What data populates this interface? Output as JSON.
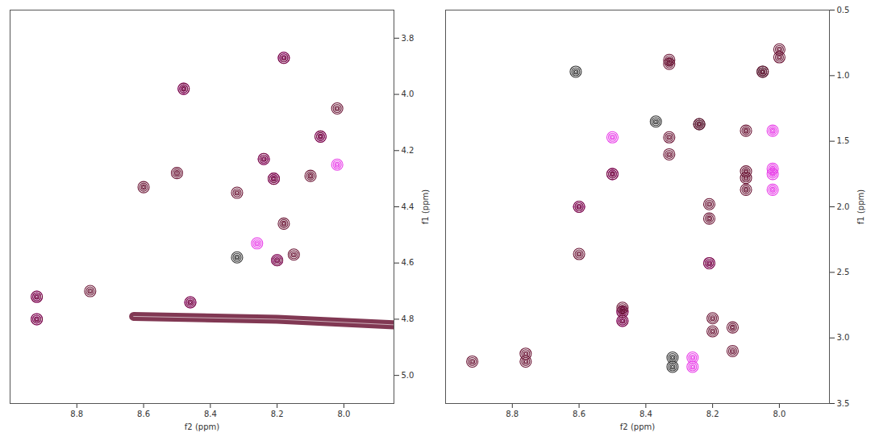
{
  "chart_data": [
    {
      "type": "scatter",
      "xlabel": "f2 (ppm)",
      "ylabel": "f1 (ppm)",
      "xlim": [
        9.0,
        7.85
      ],
      "ylim": [
        3.7,
        5.1
      ],
      "xticks": [
        8.8,
        8.6,
        8.4,
        8.2,
        {
          "value": 8,
          "label": "8.0"
        }
      ],
      "yticks": [
        3.8,
        {
          "value": 4,
          "label": "4.0"
        },
        4.2,
        4.4,
        4.6,
        4.8,
        {
          "value": 5,
          "label": "5.0"
        }
      ],
      "series": [
        {
          "color": "#e83ee8",
          "type": "scatter",
          "x": [
            8.92,
            8.92,
            8.48,
            8.46,
            8.26,
            8.24,
            8.21,
            8.2,
            8.18,
            8.07,
            8.02
          ],
          "values": [
            4.72,
            4.8,
            3.98,
            4.74,
            4.53,
            4.23,
            4.3,
            4.59,
            3.87,
            4.15,
            4.25
          ]
        },
        {
          "color": "#6b1535",
          "type": "line",
          "x": [
            8.63,
            8.2,
            7.85
          ],
          "values": [
            4.79,
            4.8,
            4.82
          ]
        },
        {
          "color": "#333333",
          "type": "scatter",
          "x": [
            8.32
          ],
          "values": [
            4.58
          ]
        },
        {
          "color": "#6b1535",
          "type": "scatter",
          "x": [
            8.92,
            8.92,
            8.76,
            8.6,
            8.5,
            8.48,
            8.46,
            8.32,
            8.24,
            8.21,
            8.2,
            8.18,
            8.18,
            8.15,
            8.1,
            8.07,
            8.02
          ],
          "values": [
            4.72,
            4.8,
            4.7,
            4.33,
            4.28,
            3.98,
            4.74,
            4.35,
            4.23,
            4.3,
            4.59,
            3.87,
            4.46,
            4.57,
            4.29,
            4.15,
            4.05
          ]
        }
      ]
    },
    {
      "type": "scatter",
      "xlabel": "f2 (ppm)",
      "ylabel": "f1 (ppm)",
      "xlim": [
        9.0,
        7.85
      ],
      "ylim": [
        0.5,
        3.5
      ],
      "xticks": [
        8.8,
        8.6,
        8.4,
        8.2,
        {
          "value": 8,
          "label": "8.0"
        }
      ],
      "yticks": [
        0.5,
        {
          "value": 1,
          "label": "1.0"
        },
        1.5,
        {
          "value": 2,
          "label": "2.0"
        },
        2.5,
        {
          "value": 3,
          "label": "3.0"
        },
        3.5
      ],
      "series": [
        {
          "color": "#e83ee8",
          "type": "scatter",
          "x": [
            8.6,
            8.5,
            8.5,
            8.47,
            8.47,
            8.26,
            8.26,
            8.21,
            8.02,
            8.02,
            8.02,
            8.02
          ],
          "values": [
            2.0,
            1.47,
            1.75,
            2.8,
            2.87,
            3.15,
            3.22,
            2.43,
            1.42,
            1.71,
            1.75,
            1.87
          ]
        },
        {
          "color": "#333333",
          "type": "scatter",
          "x": [
            8.61,
            8.37,
            8.32,
            8.32,
            8.24,
            8.05
          ],
          "values": [
            0.97,
            1.35,
            3.15,
            3.22,
            1.37,
            0.97
          ]
        },
        {
          "color": "#6b1535",
          "type": "scatter",
          "x": [
            8.92,
            8.76,
            8.76,
            8.6,
            8.6,
            8.5,
            8.47,
            8.47,
            8.47,
            8.33,
            8.33,
            8.33,
            8.33,
            8.24,
            8.21,
            8.21,
            8.21,
            8.2,
            8.2,
            8.14,
            8.14,
            8.1,
            8.1,
            8.1,
            8.1,
            8.05,
            8.0,
            8.0
          ],
          "values": [
            3.18,
            3.12,
            3.18,
            2.0,
            2.36,
            1.75,
            2.77,
            2.8,
            2.87,
            0.88,
            0.91,
            1.47,
            1.6,
            1.37,
            1.98,
            2.09,
            2.43,
            2.85,
            2.95,
            2.92,
            3.1,
            1.42,
            1.73,
            1.78,
            1.87,
            0.97,
            0.8,
            0.86
          ]
        }
      ]
    }
  ]
}
